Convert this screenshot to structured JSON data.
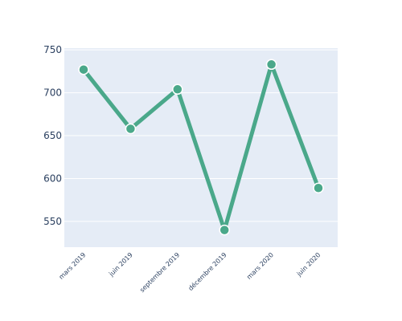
{
  "chart_data": {
    "type": "line",
    "title": "",
    "xlabel": "",
    "ylabel": "",
    "categories": [
      "mars 2019",
      "juin 2019",
      "septembre 2019",
      "décembre 2019",
      "mars 2020",
      "juin 2020"
    ],
    "series": [
      {
        "values": [
          727,
          658,
          704,
          540,
          733,
          589
        ]
      }
    ],
    "ylim": [
      520,
      752
    ],
    "yticks": [
      550,
      600,
      650,
      700,
      750
    ],
    "grid": true,
    "legend": "none",
    "colors": {
      "line": "#4aa88a",
      "plot_bg": "#e5ecf6",
      "grid": "#ffffff",
      "tick_text": "#2a3f5f"
    }
  }
}
